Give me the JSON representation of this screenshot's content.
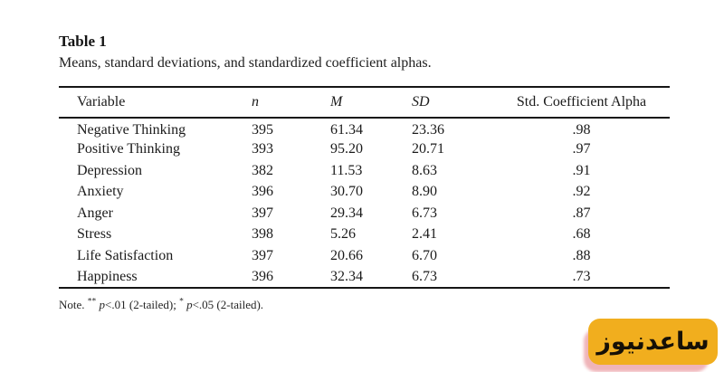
{
  "table": {
    "label": "Table 1",
    "caption": "Means, standard deviations, and standardized coefficient alphas.",
    "columns": [
      {
        "key": "variable",
        "label": "Variable"
      },
      {
        "key": "n",
        "label": "n"
      },
      {
        "key": "m",
        "label": "M"
      },
      {
        "key": "sd",
        "label": "SD"
      },
      {
        "key": "alpha",
        "label": "Std. Coefficient Alpha"
      }
    ],
    "rows": [
      {
        "variable": "Negative Thinking",
        "n": "395",
        "m": "61.34",
        "sd": "23.36",
        "alpha": ".98"
      },
      {
        "variable": "Positive Thinking",
        "n": "393",
        "m": "95.20",
        "sd": "20.71",
        "alpha": ".97"
      },
      {
        "variable": "Depression",
        "n": "382",
        "m": "11.53",
        "sd": "8.63",
        "alpha": ".91"
      },
      {
        "variable": "Anxiety",
        "n": "396",
        "m": "30.70",
        "sd": "8.90",
        "alpha": ".92"
      },
      {
        "variable": "Anger",
        "n": "397",
        "m": "29.34",
        "sd": "6.73",
        "alpha": ".87"
      },
      {
        "variable": "Stress",
        "n": "398",
        "m": "5.26",
        "sd": "2.41",
        "alpha": ".68"
      },
      {
        "variable": "Life Satisfaction",
        "n": "397",
        "m": "20.66",
        "sd": "6.70",
        "alpha": ".88"
      },
      {
        "variable": "Happiness",
        "n": "396",
        "m": "32.34",
        "sd": "6.73",
        "alpha": ".73"
      }
    ],
    "note": {
      "prefix": "Note.",
      "sig1_stars": "**",
      "sig1_var": "p",
      "sig1_rest": "<.01 (2-tailed);",
      "sig2_stars": "*",
      "sig2_var": "p",
      "sig2_rest": "<.05 (2-tailed)."
    }
  },
  "watermark": {
    "text": "ساعدنیوز",
    "badge_color": "#f1ae1e",
    "shadow_color": "#dd5a64",
    "text_color": "#161006"
  }
}
